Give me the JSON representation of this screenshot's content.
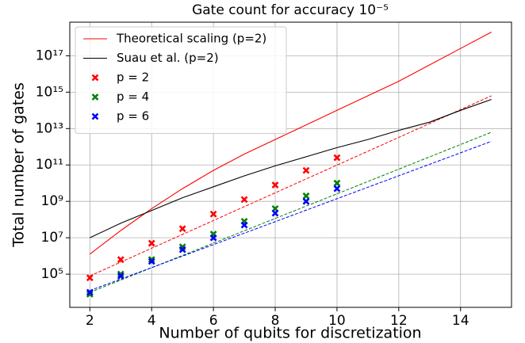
{
  "chart_data": {
    "type": "line",
    "title": "Gate count for accuracy 10⁻⁵",
    "x_label": "Number of qubits for discretization",
    "y_label": "Total number of gates",
    "xlim": [
      1.35,
      15.65
    ],
    "xticks": [
      2,
      4,
      6,
      8,
      10,
      12,
      14
    ],
    "ylim": [
      1500,
      7e+18
    ],
    "log_y": true,
    "grid": true,
    "legend": "upper left",
    "yticks": [
      {
        "value": 100000.0,
        "label": "10⁵"
      },
      {
        "value": 10000000.0,
        "label": "10⁷"
      },
      {
        "value": 1000000000.0,
        "label": "10⁹"
      },
      {
        "value": 100000000000.0,
        "label": "10¹¹"
      },
      {
        "value": 10000000000000.0,
        "label": "10¹³"
      },
      {
        "value": 1000000000000000.0,
        "label": "10¹⁵"
      },
      {
        "value": 1e+17,
        "label": "10¹⁷"
      }
    ],
    "series": [
      {
        "name": "Theoretical scaling (p=2)",
        "type": "line",
        "color": "#ff0000",
        "x": [
          2,
          3,
          4,
          5,
          6,
          7,
          8,
          9,
          10,
          11,
          12,
          13,
          14,
          15
        ],
        "values": [
          1260000.0,
          25100000.0,
          398000000.0,
          5010000000.0,
          50100000000.0,
          398000000000.0,
          2510000000000.0,
          15800000000000.0,
          100000000000000.0,
          631000000000000.0,
          3980000000000000.0,
          3.16e+16,
          2.51e+17,
          2e+18
        ]
      },
      {
        "name": "Suau et al. (p=2)",
        "type": "line",
        "color": "#000000",
        "x": [
          2,
          3,
          4,
          5,
          6,
          7,
          8,
          9,
          10,
          11,
          12,
          13,
          14,
          15
        ],
        "values": [
          10000000.0,
          63100000.0,
          316000000.0,
          1580000000.0,
          6310000000.0,
          25100000000.0,
          89100000000.0,
          282000000000.0,
          891000000000.0,
          2510000000000.0,
          7940000000000.0,
          22400000000000.0,
          100000000000000.0,
          398000000000000.0
        ]
      },
      {
        "name": "p = 2",
        "type": "scatter",
        "color": "#ff0000",
        "x": [
          2,
          3,
          4,
          5,
          6,
          7,
          8,
          9,
          10
        ],
        "values": [
          63100.0,
          631000.0,
          5010000.0,
          31600000.0,
          200000000.0,
          1260000000.0,
          7940000000.0,
          50100000000.0,
          251000000000.0
        ]
      },
      {
        "name": "p = 4",
        "type": "scatter",
        "color": "#008000",
        "x": [
          2,
          3,
          4,
          5,
          6,
          7,
          8,
          9,
          10
        ],
        "values": [
          7940.0,
          100000.0,
          631000.0,
          3160000.0,
          15800000.0,
          79400000.0,
          398000000.0,
          2000000000.0,
          10000000000.0
        ]
      },
      {
        "name": "p = 6",
        "type": "scatter",
        "color": "#0000ff",
        "x": [
          2,
          3,
          4,
          5,
          6,
          7,
          8,
          9,
          10
        ],
        "values": [
          10000.0,
          79400.0,
          501000.0,
          2240000.0,
          10000000.0,
          50100000.0,
          224000000.0,
          1000000000.0,
          5010000000.0
        ]
      }
    ],
    "fits": [
      {
        "color": "#ff0000",
        "x": [
          2,
          15
        ],
        "values": [
          79400.0,
          631000000000000.0
        ]
      },
      {
        "color": "#008000",
        "x": [
          2,
          15
        ],
        "values": [
          10000.0,
          6310000000000.0
        ]
      },
      {
        "color": "#0000ff",
        "x": [
          2,
          15
        ],
        "values": [
          12600.0,
          2000000000000.0
        ]
      }
    ]
  }
}
